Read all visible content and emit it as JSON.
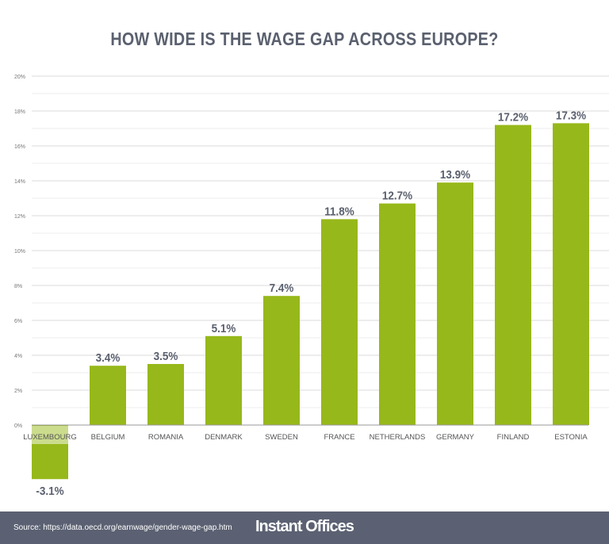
{
  "chart_data": {
    "type": "bar",
    "title": "HOW WIDE IS THE WAGE GAP ACROSS EUROPE?",
    "categories": [
      "LUXEMBOURG",
      "BELGIUM",
      "ROMANIA",
      "DENMARK",
      "SWEDEN",
      "FRANCE",
      "NETHERLANDS",
      "GERMANY",
      "FINLAND",
      "ESTONIA"
    ],
    "values": [
      -3.1,
      3.4,
      3.5,
      5.1,
      7.4,
      11.8,
      12.7,
      13.9,
      17.2,
      17.3
    ],
    "data_labels": [
      "-3.1%",
      "3.4%",
      "3.5%",
      "5.1%",
      "7.4%",
      "11.8%",
      "12.7%",
      "13.9%",
      "17.2%",
      "17.3%"
    ],
    "yticks": [
      "0%",
      "2%",
      "4%",
      "6%",
      "8%",
      "10%",
      "12%",
      "14%",
      "16%",
      "18%",
      "20%"
    ],
    "ylim": [
      0,
      20
    ],
    "grid": true,
    "xlabel": "",
    "ylabel": "",
    "colors": {
      "bar": "#97b81a",
      "title": "#5a606e",
      "footer": "#5b6172"
    }
  },
  "footer": {
    "source": "Source: https://data.oecd.org/earnwage/gender-wage-gap.htm",
    "logo": "Instant Offices"
  }
}
